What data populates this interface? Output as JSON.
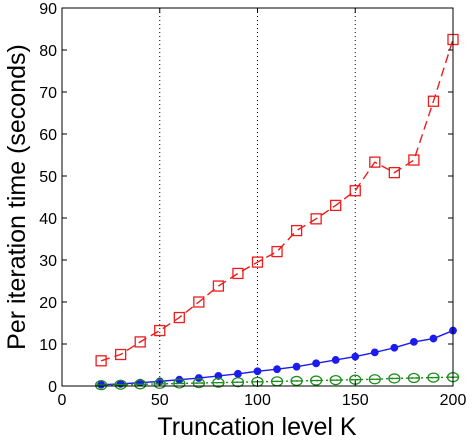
{
  "chart_data": {
    "type": "line",
    "title": "",
    "xlabel": "Truncation level K",
    "ylabel": "Per iteration time (seconds)",
    "xlim": [
      0,
      200
    ],
    "ylim": [
      0,
      90
    ],
    "xticks": [
      0,
      50,
      100,
      150,
      200
    ],
    "yticks": [
      0,
      10,
      20,
      30,
      40,
      50,
      60,
      70,
      80,
      90
    ],
    "grid": "vertical dotted at x=50,100,150",
    "legend": "none",
    "x": [
      20,
      30,
      40,
      50,
      60,
      70,
      80,
      90,
      100,
      110,
      120,
      130,
      140,
      150,
      160,
      170,
      180,
      190,
      200
    ],
    "series": [
      {
        "color": "#ee1c1c",
        "line_style": "dashed",
        "marker": "square",
        "values": [
          6.0,
          7.5,
          10.5,
          13.2,
          16.3,
          20.0,
          23.8,
          26.8,
          29.5,
          32.0,
          37.0,
          39.8,
          43.0,
          46.5,
          53.3,
          50.8,
          53.8,
          67.8,
          82.5
        ]
      },
      {
        "color": "#1c1cee",
        "line_style": "solid",
        "marker": "filled-circle",
        "values": [
          0.3,
          0.5,
          0.8,
          1.1,
          1.5,
          1.9,
          2.4,
          2.9,
          3.5,
          4.0,
          4.6,
          5.4,
          6.2,
          7.0,
          8.0,
          9.1,
          10.5,
          11.3,
          13.2
        ]
      },
      {
        "color": "#1c8c1c",
        "line_style": "dotted",
        "marker": "circle-with-bar",
        "values": [
          0.2,
          0.3,
          0.4,
          0.5,
          0.6,
          0.7,
          0.8,
          0.9,
          1.0,
          1.1,
          1.2,
          1.3,
          1.4,
          1.5,
          1.6,
          1.8,
          1.9,
          2.0,
          2.1
        ]
      }
    ]
  }
}
